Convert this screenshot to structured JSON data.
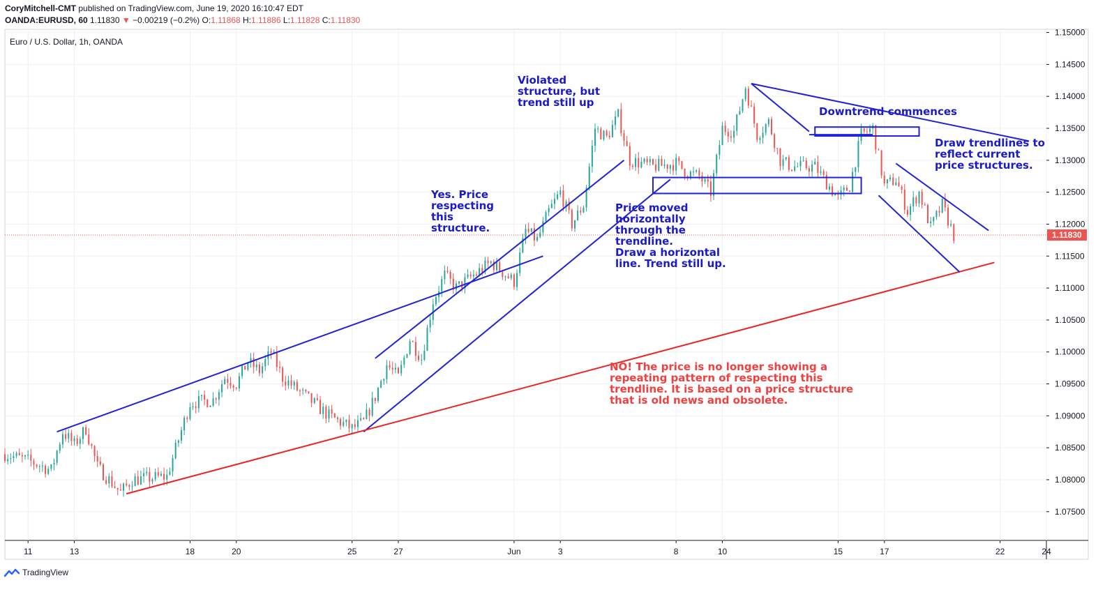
{
  "header": {
    "line1_author": "CoryMitchell-CMT",
    "line1_rest": "published on TradingView.com, June 19, 2020 16:10:47 EDT",
    "symbol": "OANDA:EURUSD, 60",
    "last": "1.11830",
    "change_arrow": "▼",
    "change": "−0.00219 (−0.2%)",
    "o_label": "O:",
    "o_value": "1.11868",
    "h_label": "H:",
    "h_value": "1.11886",
    "l_label": "L:",
    "l_value": "1.11828",
    "c_label": "C:",
    "c_value": "1.11830"
  },
  "footer": {
    "brand": "TradingView"
  },
  "colors": {
    "up": "#26a69a",
    "down": "#ef5350",
    "annotation": "#1a1acc",
    "warning": "#f23f3f",
    "trend_blue": "#1f22d9",
    "trend_red": "#ee2222"
  },
  "chart_data": {
    "type": "candlestick",
    "title": "Euro / U.S. Dollar, 1h, OANDA",
    "ylim": [
      1.0705,
      1.1505
    ],
    "y_ticks": [
      "1.07500",
      "1.08000",
      "1.08500",
      "1.09000",
      "1.09500",
      "1.10000",
      "1.10500",
      "1.11000",
      "1.11500",
      "1.12000",
      "1.12500",
      "1.13000",
      "1.13500",
      "1.14000",
      "1.14500",
      "1.15000"
    ],
    "x_ticks": [
      "11",
      "13",
      "18",
      "20",
      "25",
      "27",
      "Jun",
      "3",
      "8",
      "10",
      "15",
      "17",
      "22",
      "24"
    ],
    "x_domain": [
      "2020-05-10",
      "2020-06-24"
    ],
    "x_ticks_dates": [
      "2020-05-11",
      "2020-05-13",
      "2020-05-18",
      "2020-05-20",
      "2020-05-25",
      "2020-05-27",
      "2020-06-01",
      "2020-06-03",
      "2020-06-08",
      "2020-06-10",
      "2020-06-15",
      "2020-06-17",
      "2020-06-22",
      "2020-06-24"
    ],
    "last_price_label": "1.11830",
    "last_price": 1.1183,
    "price_path": [
      [
        "2020-05-10",
        1.084
      ],
      [
        "2020-05-11",
        1.083
      ],
      [
        "2020-05-12",
        1.0815
      ],
      [
        "2020-05-12T12",
        1.0875
      ],
      [
        "2020-05-13",
        1.0855
      ],
      [
        "2020-05-13T12",
        1.088
      ],
      [
        "2020-05-14",
        1.082
      ],
      [
        "2020-05-15",
        1.078
      ],
      [
        "2020-05-15T12",
        1.08
      ],
      [
        "2020-05-17",
        1.0805
      ],
      [
        "2020-05-18",
        1.092
      ],
      [
        "2020-05-19",
        1.0925
      ],
      [
        "2020-05-19T12",
        1.096
      ],
      [
        "2020-05-20",
        1.095
      ],
      [
        "2020-05-20T12",
        1.0985
      ],
      [
        "2020-05-21",
        1.097
      ],
      [
        "2020-05-21T12",
        1.1
      ],
      [
        "2020-05-22",
        1.096
      ],
      [
        "2020-05-24",
        1.09
      ],
      [
        "2020-05-25",
        1.088
      ],
      [
        "2020-05-25T12",
        1.089
      ],
      [
        "2020-05-26",
        1.093
      ],
      [
        "2020-05-26T12",
        1.098
      ],
      [
        "2020-05-27",
        1.096
      ],
      [
        "2020-05-27T12",
        1.102
      ],
      [
        "2020-05-28",
        1.099
      ],
      [
        "2020-05-28T12",
        1.108
      ],
      [
        "2020-05-29",
        1.112
      ],
      [
        "2020-05-29T12",
        1.11
      ],
      [
        "2020-05-31",
        1.114
      ],
      [
        "2020-06-01",
        1.111
      ],
      [
        "2020-06-01T12",
        1.119
      ],
      [
        "2020-06-02",
        1.1175
      ],
      [
        "2020-06-02T12",
        1.122
      ],
      [
        "2020-06-03",
        1.125
      ],
      [
        "2020-06-03T12",
        1.12
      ],
      [
        "2020-06-04",
        1.123
      ],
      [
        "2020-06-04T12",
        1.135
      ],
      [
        "2020-06-05",
        1.1335
      ],
      [
        "2020-06-05T12",
        1.137
      ],
      [
        "2020-06-06",
        1.13
      ],
      [
        "2020-06-07",
        1.129
      ],
      [
        "2020-06-08",
        1.1295
      ],
      [
        "2020-06-08T12",
        1.128
      ],
      [
        "2020-06-09",
        1.1275
      ],
      [
        "2020-06-09T12",
        1.125
      ],
      [
        "2020-06-10",
        1.135
      ],
      [
        "2020-06-10T12",
        1.1345
      ],
      [
        "2020-06-11",
        1.1415
      ],
      [
        "2020-06-11T12",
        1.134
      ],
      [
        "2020-06-12",
        1.136
      ],
      [
        "2020-06-12T12",
        1.13
      ],
      [
        "2020-06-13",
        1.129
      ],
      [
        "2020-06-14",
        1.129
      ],
      [
        "2020-06-15",
        1.124
      ],
      [
        "2020-06-15T12",
        1.126
      ],
      [
        "2020-06-16",
        1.134
      ],
      [
        "2020-06-16T12",
        1.135
      ],
      [
        "2020-06-17",
        1.126
      ],
      [
        "2020-06-17T12",
        1.127
      ],
      [
        "2020-06-18",
        1.122
      ],
      [
        "2020-06-18T12",
        1.125
      ],
      [
        "2020-06-19",
        1.1195
      ],
      [
        "2020-06-19T12",
        1.123
      ],
      [
        "2020-06-20",
        1.1183
      ]
    ],
    "trendlines": [
      {
        "color": "blue",
        "from": [
          "2020-05-12T06",
          1.0875
        ],
        "to": [
          "2020-06-02T06",
          1.115
        ]
      },
      {
        "color": "blue",
        "from": [
          "2020-05-26",
          1.099
        ],
        "to": [
          "2020-06-05T18",
          1.13
        ]
      },
      {
        "color": "blue",
        "from": [
          "2020-05-25T12",
          1.0875
        ],
        "to": [
          "2020-06-07T18",
          1.127
        ]
      },
      {
        "color": "red",
        "from": [
          "2020-05-15T06",
          1.0778
        ],
        "to": [
          "2020-06-21T18",
          1.114
        ]
      },
      {
        "color": "blue",
        "from": [
          "2020-06-11T06",
          1.142
        ],
        "to": [
          "2020-06-23T06",
          1.133
        ]
      },
      {
        "color": "blue",
        "from": [
          "2020-06-11T06",
          1.142
        ],
        "to": [
          "2020-06-13T18",
          1.1345
        ]
      },
      {
        "color": "blue",
        "from": [
          "2020-06-16T18",
          1.1245
        ],
        "to": [
          "2020-06-20T06",
          1.1125
        ]
      },
      {
        "color": "blue",
        "from": [
          "2020-06-17T12",
          1.1295
        ],
        "to": [
          "2020-06-21T12",
          1.119
        ]
      },
      {
        "color": "blue",
        "from": [
          "2020-06-13T18",
          1.134
        ],
        "to": [
          "2020-06-16T12",
          1.134
        ]
      }
    ],
    "boxes": [
      {
        "from": [
          "2020-06-07",
          1.1273
        ],
        "to": [
          "2020-06-16",
          1.1248
        ]
      },
      {
        "from": [
          "2020-06-14",
          1.1352
        ],
        "to": [
          "2020-06-18T12",
          1.1338
        ]
      }
    ],
    "annotations": [
      {
        "lines": [
          "Yes. Price",
          "respecting",
          "this",
          "structure."
        ],
        "color": "blue"
      },
      {
        "lines": [
          "Violated",
          "structure, but",
          "trend still up"
        ],
        "color": "blue"
      },
      {
        "lines": [
          "Price moved",
          "horizontally",
          "through the",
          "trendline.",
          "Draw a horizontal",
          "line. Trend still up."
        ],
        "color": "blue"
      },
      {
        "lines": [
          "Downtrend commences"
        ],
        "color": "blue"
      },
      {
        "lines": [
          "Draw trendlines to",
          "reflect current",
          "price structures."
        ],
        "color": "blue"
      },
      {
        "lines": [
          "NO! The price is no longer showing a",
          "repeating pattern of respecting this",
          "trendline. It is based on a price structure",
          "that is old news and obsolete."
        ],
        "color": "red"
      }
    ]
  }
}
